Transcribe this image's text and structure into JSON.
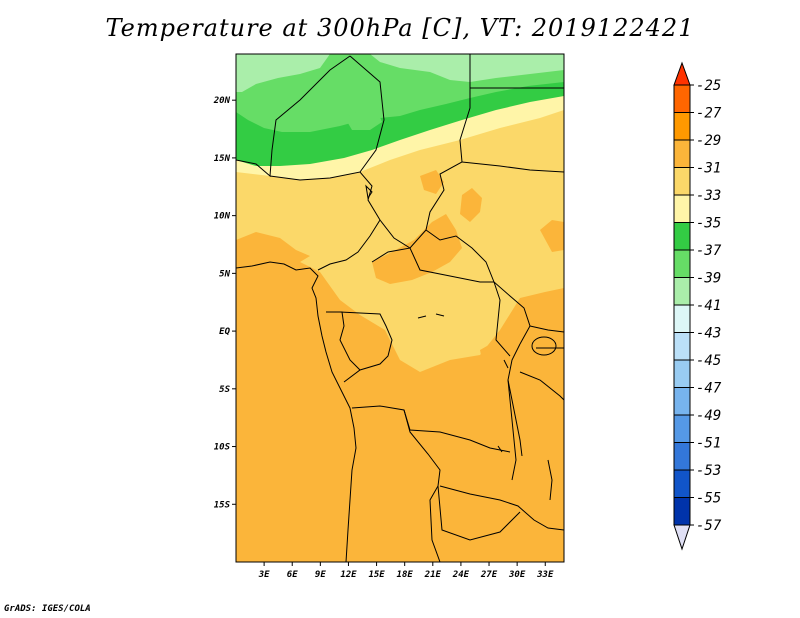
{
  "title": "Temperature at 300hPa [C], VT: 2019122421",
  "credit": "GrADS: IGES/COLA",
  "map": {
    "lon_range": [
      0,
      35
    ],
    "lat_range": [
      -20,
      24
    ],
    "lat_ticks": [
      {
        "lat": 20,
        "label": "20N"
      },
      {
        "lat": 15,
        "label": "15N"
      },
      {
        "lat": 10,
        "label": "10N"
      },
      {
        "lat": 5,
        "label": "5N"
      },
      {
        "lat": 0,
        "label": "EQ"
      },
      {
        "lat": -5,
        "label": "5S"
      },
      {
        "lat": -10,
        "label": "10S"
      },
      {
        "lat": -15,
        "label": "15S"
      }
    ],
    "lon_ticks": [
      {
        "lon": 3,
        "label": "3E"
      },
      {
        "lon": 6,
        "label": "6E"
      },
      {
        "lon": 9,
        "label": "9E"
      },
      {
        "lon": 12,
        "label": "12E"
      },
      {
        "lon": 15,
        "label": "15E"
      },
      {
        "lon": 18,
        "label": "18E"
      },
      {
        "lon": 21,
        "label": "21E"
      },
      {
        "lon": 24,
        "label": "24E"
      },
      {
        "lon": 27,
        "label": "27E"
      },
      {
        "lon": 30,
        "label": "30E"
      },
      {
        "lon": 33,
        "label": "33E"
      }
    ]
  },
  "colorbar": {
    "labels": [
      "-25",
      "-27",
      "-29",
      "-31",
      "-33",
      "-35",
      "-37",
      "-39",
      "-41",
      "-43",
      "-45",
      "-47",
      "-49",
      "-51",
      "-53",
      "-55",
      "-57"
    ],
    "top_color": "#ff3300",
    "bottom_color": "#e0e0f5",
    "colors": [
      "#ff6600",
      "#ff9900",
      "#fbb53a",
      "#fbd869",
      "#fff5a8",
      "#33cc44",
      "#66dd66",
      "#aaeeaa",
      "#ddf7f7",
      "#bbe0f8",
      "#99ccf2",
      "#77b4ee",
      "#5599e6",
      "#3377d9",
      "#1155c9",
      "#0033aa",
      "#001177"
    ]
  },
  "colors": {
    "warm": "#fbb53a",
    "mid": "#fbd869",
    "pale": "#fff5a8",
    "green_dark": "#33cc44",
    "green_mid": "#66dd66",
    "green_light": "#aaeeaa"
  }
}
